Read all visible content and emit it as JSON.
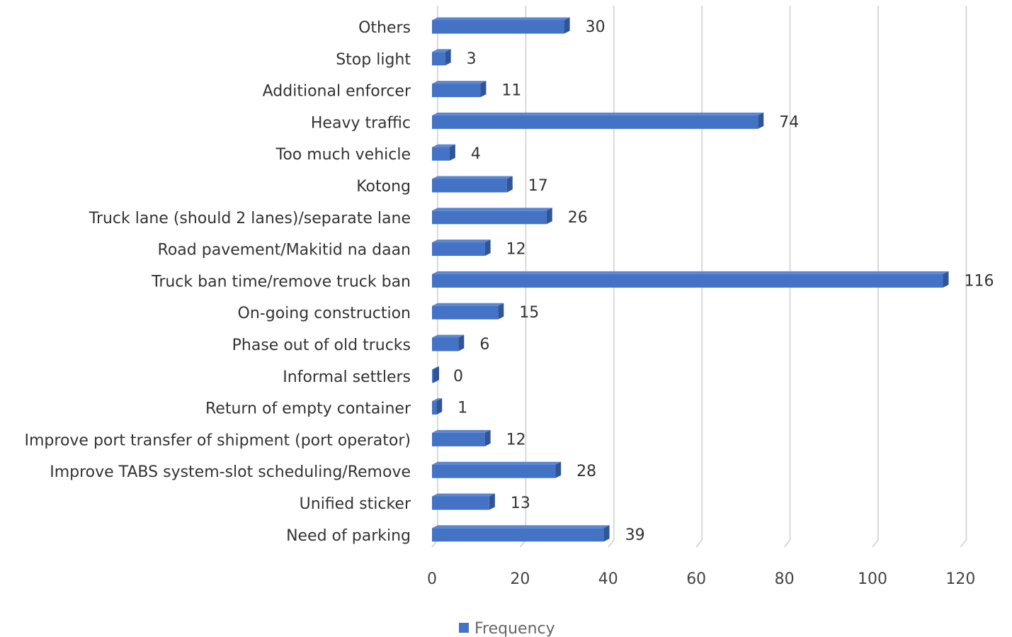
{
  "chart_data": {
    "type": "bar",
    "orientation": "horizontal",
    "categories": [
      "Others",
      "Stop light",
      "Additional enforcer",
      "Heavy traffic",
      "Too much vehicle",
      "Kotong",
      "Truck lane (should 2 lanes)/separate lane",
      "Road pavement/Makitid na daan",
      "Truck ban time/remove truck ban",
      "On-going construction",
      "Phase out of old trucks",
      "Informal settlers",
      "Return of empty container",
      "Improve port transfer of shipment (port operator)",
      "Improve TABS system-slot scheduling/Remove",
      "Unified sticker",
      "Need of parking"
    ],
    "series": [
      {
        "name": "Frequency",
        "values": [
          30,
          3,
          11,
          74,
          4,
          17,
          26,
          12,
          116,
          15,
          6,
          0,
          1,
          12,
          28,
          13,
          39
        ]
      }
    ],
    "xlim": [
      0,
      120
    ],
    "xticks": [
      "0",
      "20",
      "40",
      "60",
      "80",
      "100",
      "120"
    ],
    "grid": "vertical",
    "legend_position": "bottom",
    "colors": {
      "bar": "#4472c4",
      "bar_side": "#2f5597",
      "bar_top": "#5b86d1"
    }
  }
}
